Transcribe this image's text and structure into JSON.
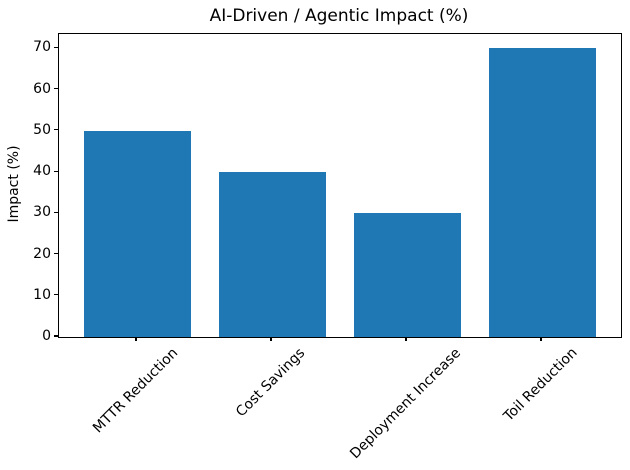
{
  "chart_data": {
    "type": "bar",
    "title": "AI-Driven / Agentic Impact (%)",
    "xlabel": "",
    "ylabel": "Impact (%)",
    "categories": [
      "MTTR Reduction",
      "Cost Savings",
      "Deployment Increase",
      "Toil Reduction"
    ],
    "values": [
      50,
      40,
      30,
      70
    ],
    "yticks": [
      0,
      10,
      20,
      30,
      40,
      50,
      60,
      70
    ],
    "ylim": [
      0,
      73.5
    ],
    "bar_color": "#1f77b4",
    "axis_color": "#000000",
    "background_color": "#ffffff",
    "grid": false,
    "legend": "none",
    "x_tick_label_rotation_deg": 45
  }
}
